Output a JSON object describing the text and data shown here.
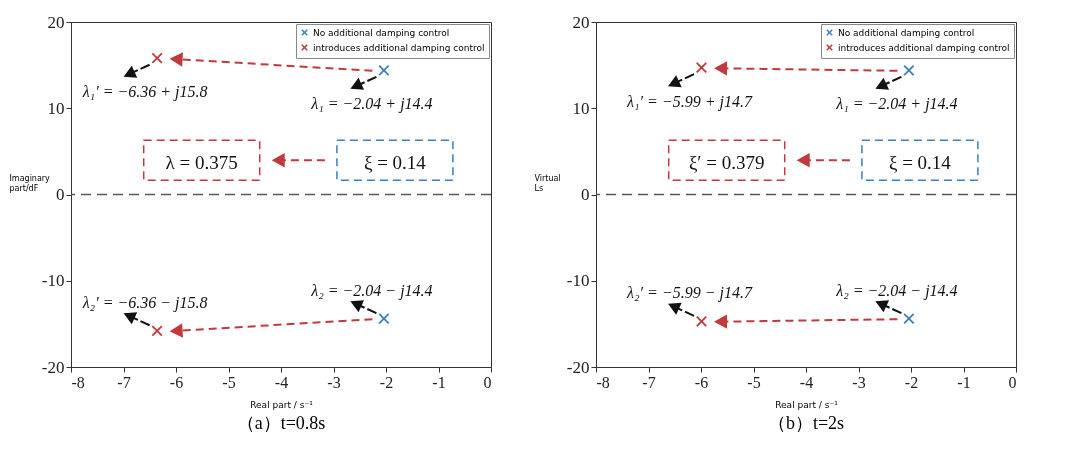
{
  "chart_data": [
    {
      "type": "scatter",
      "title": "（a）t=0.8s",
      "xlabel": "Real part / s⁻¹",
      "ylabel": "Imaginary part/dF",
      "xlim": [
        -8,
        0
      ],
      "ylim": [
        -20,
        20
      ],
      "xticks": [
        -8,
        -7,
        -6,
        -5,
        -4,
        -3,
        -2,
        -1,
        0
      ],
      "yticks": [
        -20,
        -10,
        0,
        10,
        20
      ],
      "grid": false,
      "legend": "top right",
      "marker": "cross",
      "series": [
        {
          "name": "No additional damping control",
          "color": "#3a7fc0",
          "x": [
            -2.04,
            -2.04
          ],
          "values": [
            14.4,
            -14.4
          ]
        },
        {
          "name": "introduces additional damping control",
          "color": "#c0393b",
          "x": [
            -6.36,
            -6.36
          ],
          "values": [
            15.8,
            -15.8
          ]
        }
      ],
      "ref_lines": [
        {
          "axis": "y",
          "value": 0,
          "label": null,
          "line_style": "dashed",
          "color": "#555555"
        }
      ],
      "annotations": [
        {
          "text": "λ₁ = −2.04 + j14.4",
          "x": -2.04,
          "y": 14.4
        },
        {
          "text": "λ₁′ = −6.36 + j15.8",
          "x": -6.36,
          "y": 15.8
        },
        {
          "text": "λ₂ = −2.04 − j14.4",
          "x": -2.04,
          "y": -14.4
        },
        {
          "text": "λ₂′ = −6.36 − j15.8",
          "x": -6.36,
          "y": -15.8
        },
        "ξ = 0.14",
        "λ = 0.375"
      ]
    },
    {
      "type": "scatter",
      "title": "（b）t=2s",
      "xlabel": "Real part / s⁻¹",
      "ylabel": "Virtual Ls",
      "xlim": [
        -8,
        0
      ],
      "ylim": [
        -20,
        20
      ],
      "xticks": [
        -8,
        -7,
        -6,
        -5,
        -4,
        -3,
        -2,
        -1,
        0
      ],
      "yticks": [
        -20,
        -10,
        0,
        10,
        20
      ],
      "grid": false,
      "legend": "top right",
      "marker": "cross",
      "series": [
        {
          "name": "No additional damping control",
          "color": "#3a7fc0",
          "x": [
            -2.04,
            -2.04
          ],
          "values": [
            14.4,
            -14.4
          ]
        },
        {
          "name": "introduces additional damping control",
          "color": "#c0393b",
          "x": [
            -5.99,
            -5.99
          ],
          "values": [
            14.7,
            -14.7
          ]
        }
      ],
      "ref_lines": [
        {
          "axis": "y",
          "value": 0,
          "label": null,
          "line_style": "dashed",
          "color": "#555555"
        }
      ],
      "annotations": [
        {
          "text": "λ₁ = −2.04 + j14.4",
          "x": -2.04,
          "y": 14.4
        },
        {
          "text": "λ₁′ = −5.99 + j14.7",
          "x": -5.99,
          "y": 14.7
        },
        {
          "text": "λ₂ = −2.04 − j14.4",
          "x": -2.04,
          "y": -14.4
        },
        {
          "text": "λ₂′ = −5.99 − j14.7",
          "x": -5.99,
          "y": -14.7
        },
        "ξ = 0.14",
        "ξ′ = 0.379"
      ]
    }
  ]
}
